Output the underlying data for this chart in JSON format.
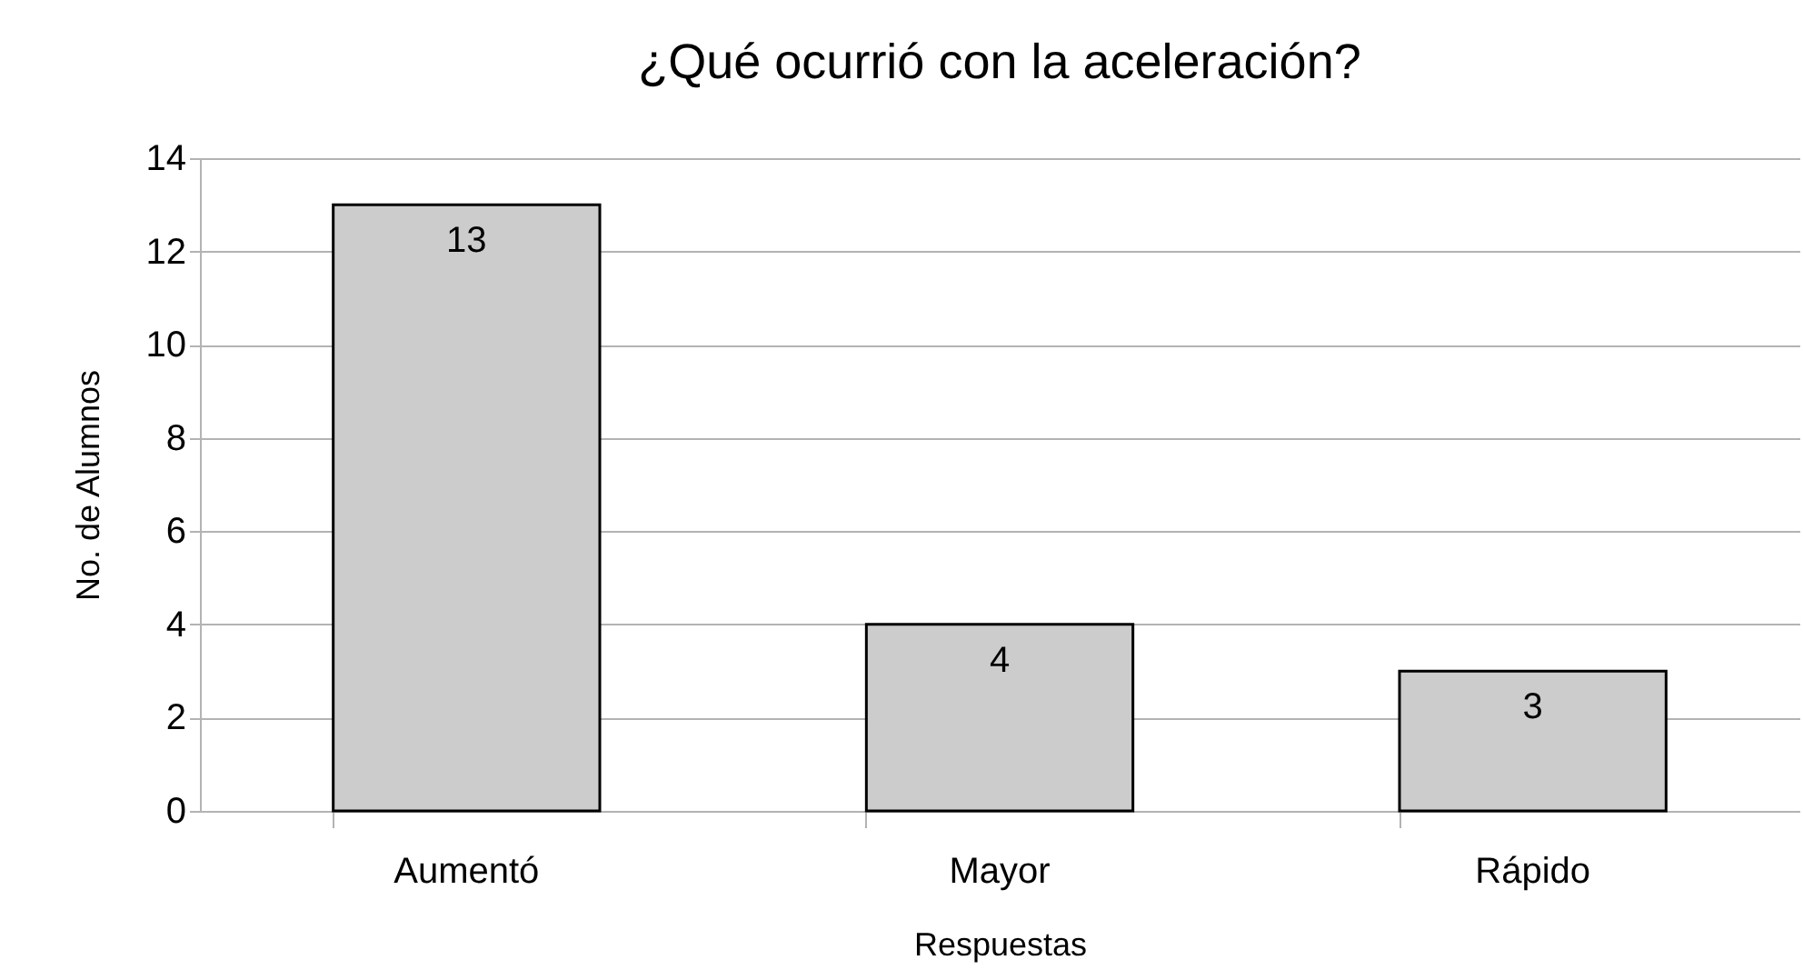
{
  "chart_data": {
    "type": "bar",
    "title": "¿Qué ocurrió con la aceleración?",
    "xlabel": "Respuestas",
    "ylabel": "No. de Alumnos",
    "categories": [
      "Aumentó",
      "Mayor",
      "Rápido"
    ],
    "values": [
      13,
      4,
      3
    ],
    "color": "#cccccc",
    "ylim": [
      0,
      14
    ],
    "yticks": [
      0,
      2,
      4,
      6,
      8,
      10,
      12,
      14
    ],
    "grid": "y",
    "data_labels": true
  }
}
